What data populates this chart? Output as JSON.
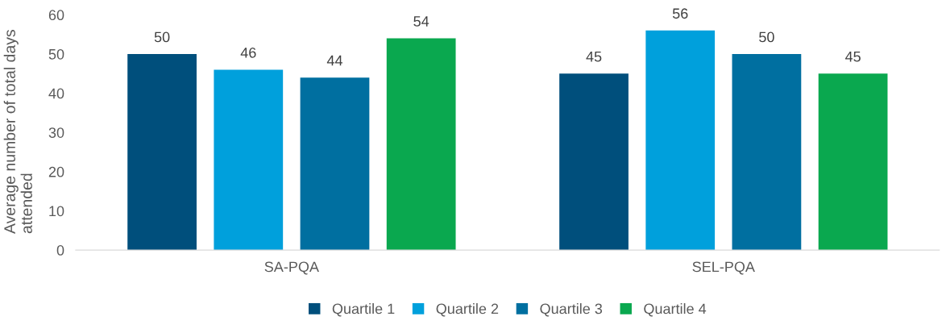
{
  "chart_data": {
    "type": "bar",
    "ylabel": "Average number of total days attended",
    "categories": [
      "SA-PQA",
      "SEL-PQA"
    ],
    "series": [
      {
        "name": "Quartile 1",
        "color": "#004f7c",
        "values": [
          50,
          45
        ]
      },
      {
        "name": "Quartile 2",
        "color": "#00a0dc",
        "values": [
          46,
          56
        ]
      },
      {
        "name": "Quartile 3",
        "color": "#006fa0",
        "values": [
          44,
          50
        ]
      },
      {
        "name": "Quartile 4",
        "color": "#0aa84f",
        "values": [
          54,
          45
        ]
      }
    ],
    "ylim": [
      0,
      60
    ],
    "yticks": [
      0,
      10,
      20,
      30,
      40,
      50,
      60
    ],
    "data_labels": true,
    "legend": "bottom",
    "grid": false
  }
}
